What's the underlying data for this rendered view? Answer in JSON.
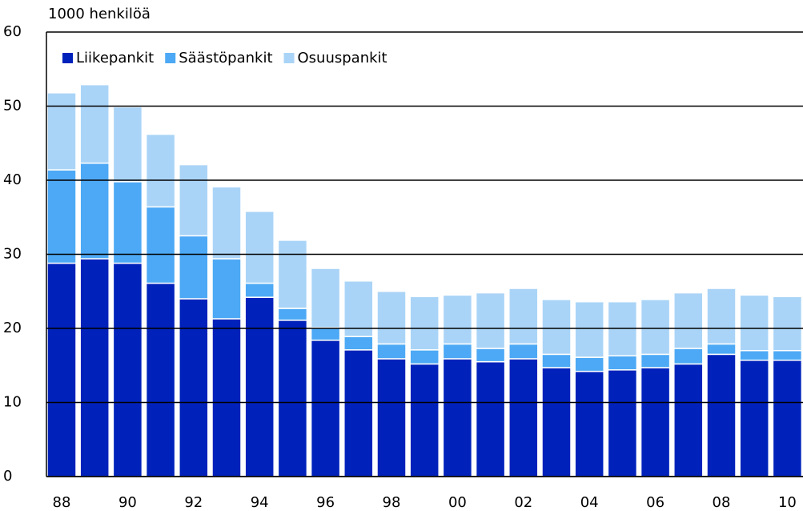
{
  "chart_data": {
    "type": "stacked_bar",
    "y_axis_label": "1000 henkilöä",
    "categories": [
      "88",
      null,
      "90",
      null,
      "92",
      null,
      "94",
      null,
      "96",
      null,
      "98",
      null,
      "00",
      null,
      "02",
      null,
      "04",
      null,
      "06",
      null,
      "08",
      null,
      "10"
    ],
    "series": [
      {
        "name": "Liikepankit",
        "color": "#0022bb",
        "values": [
          28.8,
          29.4,
          28.8,
          26.1,
          24.0,
          21.3,
          24.2,
          21.1,
          18.4,
          17.1,
          15.9,
          15.2,
          15.9,
          15.5,
          15.9,
          14.7,
          14.2,
          14.4,
          14.7,
          15.2,
          16.5,
          15.7,
          15.7
        ]
      },
      {
        "name": "Säästöpankit",
        "color": "#4da9f5",
        "values": [
          12.6,
          12.9,
          11.0,
          10.3,
          8.5,
          8.1,
          1.9,
          1.6,
          1.7,
          1.8,
          2.0,
          1.9,
          2.0,
          1.8,
          2.0,
          1.8,
          1.9,
          1.9,
          1.8,
          2.1,
          1.4,
          1.3,
          1.3
        ]
      },
      {
        "name": "Osuuspankit",
        "color": "#aad4f7",
        "values": [
          10.4,
          10.6,
          10.1,
          9.8,
          9.6,
          9.7,
          9.7,
          9.2,
          8.0,
          7.5,
          7.1,
          7.2,
          6.6,
          7.5,
          7.5,
          7.4,
          7.5,
          7.3,
          7.4,
          7.5,
          7.5,
          7.5,
          7.3
        ]
      }
    ],
    "ylim": [
      0,
      60
    ],
    "yticks": [
      0,
      10,
      20,
      30,
      40,
      50,
      60
    ],
    "grid": true,
    "legend": "top-left"
  }
}
